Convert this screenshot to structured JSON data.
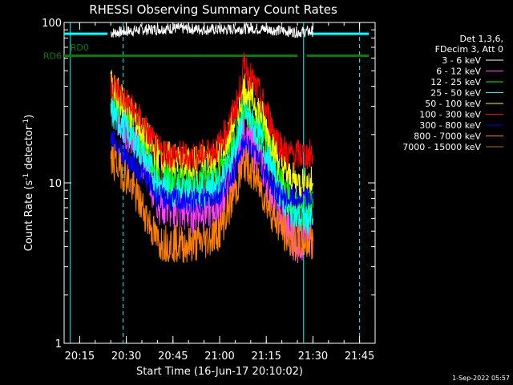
{
  "chart_data": {
    "type": "line",
    "title": "RHESSI Observing Summary Count Rates",
    "xlabel": "Start Time (16-Jun-17 20:10:02)",
    "ylabel_main": "Count Rate (s",
    "ylabel_sup": "-1",
    "ylabel_tail": " detector",
    "ylabel_close": ")",
    "xlim": [
      "20:10",
      "21:50"
    ],
    "ylim": [
      1,
      100
    ],
    "y_scale": "log",
    "x_ticks": [
      {
        "t": "20:15",
        "label": "20:15"
      },
      {
        "t": "20:30",
        "label": "20:30"
      },
      {
        "t": "20:45",
        "label": "20:45"
      },
      {
        "t": "21:00",
        "label": "21:00"
      },
      {
        "t": "21:15",
        "label": "21:15"
      },
      {
        "t": "21:30",
        "label": "21:30"
      },
      {
        "t": "21:45",
        "label": "21:45"
      }
    ],
    "y_ticks": [
      {
        "v": 1,
        "label": "1"
      },
      {
        "v": 10,
        "label": "10"
      },
      {
        "v": 100,
        "label": "100"
      }
    ],
    "legend_header": [
      "Det 1,3,6,",
      "FDecim 3, Att 0"
    ],
    "series": [
      {
        "name": "3 - 6 keV",
        "color": "#ffffff",
        "points": [
          [
            "20:25",
            86
          ],
          [
            "20:30",
            88
          ],
          [
            "20:35",
            90
          ],
          [
            "20:45",
            92
          ],
          [
            "21:00",
            90
          ],
          [
            "21:05",
            91
          ],
          [
            "21:10",
            92
          ],
          [
            "21:20",
            89
          ],
          [
            "21:25",
            87
          ],
          [
            "21:30",
            88
          ]
        ]
      },
      {
        "name": "6 - 12 keV",
        "color": "#ff40ff",
        "points": [
          [
            "20:25",
            30
          ],
          [
            "20:27",
            28
          ],
          [
            "20:30",
            22
          ],
          [
            "20:33",
            18
          ],
          [
            "20:36",
            14
          ],
          [
            "20:40",
            8
          ],
          [
            "20:45",
            7
          ],
          [
            "20:50",
            6.8
          ],
          [
            "20:55",
            7
          ],
          [
            "21:00",
            7.5
          ],
          [
            "21:03",
            10
          ],
          [
            "21:06",
            14
          ],
          [
            "21:08",
            20
          ],
          [
            "21:10",
            18
          ],
          [
            "21:13",
            14
          ],
          [
            "21:16",
            10
          ],
          [
            "21:19",
            7
          ],
          [
            "21:22",
            5
          ],
          [
            "21:25",
            4.5
          ],
          [
            "21:30",
            4.6
          ]
        ]
      },
      {
        "name": "12 - 25 keV",
        "color": "#00ff00",
        "points": [
          [
            "20:25",
            35
          ],
          [
            "20:27",
            32
          ],
          [
            "20:30",
            27
          ],
          [
            "20:33",
            22
          ],
          [
            "20:36",
            18
          ],
          [
            "20:40",
            12
          ],
          [
            "20:45",
            11
          ],
          [
            "20:50",
            10.5
          ],
          [
            "20:55",
            11
          ],
          [
            "21:00",
            12
          ],
          [
            "21:03",
            16
          ],
          [
            "21:06",
            22
          ],
          [
            "21:08",
            32
          ],
          [
            "21:10",
            28
          ],
          [
            "21:13",
            22
          ],
          [
            "21:16",
            16
          ],
          [
            "21:19",
            11
          ],
          [
            "21:22",
            8
          ],
          [
            "21:25",
            7
          ],
          [
            "21:30",
            7
          ]
        ]
      },
      {
        "name": "25 - 50 keV",
        "color": "#00ffff",
        "points": [
          [
            "20:25",
            28
          ],
          [
            "20:27",
            25
          ],
          [
            "20:30",
            22
          ],
          [
            "20:33",
            18
          ],
          [
            "20:36",
            14
          ],
          [
            "20:40",
            10
          ],
          [
            "20:45",
            9
          ],
          [
            "20:50",
            9
          ],
          [
            "20:55",
            9
          ],
          [
            "21:00",
            10
          ],
          [
            "21:03",
            13
          ],
          [
            "21:06",
            19
          ],
          [
            "21:08",
            28
          ],
          [
            "21:10",
            24
          ],
          [
            "21:13",
            19
          ],
          [
            "21:16",
            14
          ],
          [
            "21:19",
            9
          ],
          [
            "21:22",
            7
          ],
          [
            "21:25",
            6
          ],
          [
            "21:30",
            6
          ]
        ]
      },
      {
        "name": "50 - 100 keV",
        "color": "#ffff00",
        "points": [
          [
            "20:25",
            40
          ],
          [
            "20:27",
            36
          ],
          [
            "20:30",
            30
          ],
          [
            "20:33",
            25
          ],
          [
            "20:36",
            20
          ],
          [
            "20:40",
            15
          ],
          [
            "20:45",
            14
          ],
          [
            "20:50",
            13
          ],
          [
            "20:55",
            14
          ],
          [
            "21:00",
            15
          ],
          [
            "21:03",
            20
          ],
          [
            "21:06",
            28
          ],
          [
            "21:08",
            40
          ],
          [
            "21:10",
            35
          ],
          [
            "21:13",
            28
          ],
          [
            "21:16",
            20
          ],
          [
            "21:19",
            14
          ],
          [
            "21:22",
            11
          ],
          [
            "21:25",
            10
          ],
          [
            "21:30",
            10
          ]
        ]
      },
      {
        "name": "100 - 300 keV",
        "color": "#ff0000",
        "points": [
          [
            "20:25",
            42
          ],
          [
            "20:27",
            38
          ],
          [
            "20:30",
            32
          ],
          [
            "20:33",
            27
          ],
          [
            "20:36",
            22
          ],
          [
            "20:40",
            16
          ],
          [
            "20:45",
            15
          ],
          [
            "20:50",
            14.5
          ],
          [
            "20:55",
            15
          ],
          [
            "21:00",
            17
          ],
          [
            "21:03",
            23
          ],
          [
            "21:06",
            33
          ],
          [
            "21:08",
            55
          ],
          [
            "21:10",
            45
          ],
          [
            "21:13",
            35
          ],
          [
            "21:16",
            25
          ],
          [
            "21:19",
            18
          ],
          [
            "21:22",
            15
          ],
          [
            "21:25",
            15
          ],
          [
            "21:30",
            15
          ]
        ]
      },
      {
        "name": "300 - 800 keV",
        "color": "#0000ff",
        "points": [
          [
            "20:25",
            19
          ],
          [
            "20:27",
            17
          ],
          [
            "20:30",
            14.5
          ],
          [
            "20:33",
            12.5
          ],
          [
            "20:36",
            11
          ],
          [
            "20:40",
            8.2
          ],
          [
            "20:45",
            7.8
          ],
          [
            "20:50",
            7.6
          ],
          [
            "20:55",
            7.9
          ],
          [
            "21:00",
            8.5
          ],
          [
            "21:03",
            10.5
          ],
          [
            "21:06",
            13.5
          ],
          [
            "21:08",
            18
          ],
          [
            "21:10",
            16
          ],
          [
            "21:13",
            13
          ],
          [
            "21:16",
            10.5
          ],
          [
            "21:19",
            8.5
          ],
          [
            "21:22",
            8
          ],
          [
            "21:25",
            8
          ],
          [
            "21:30",
            8
          ]
        ]
      },
      {
        "name": "800 - 7000 keV",
        "color": "#ff8000",
        "points": [
          [
            "20:25",
            14
          ],
          [
            "20:27",
            13
          ],
          [
            "20:30",
            11
          ],
          [
            "20:33",
            8.5
          ],
          [
            "20:36",
            6.5
          ],
          [
            "20:40",
            4.3
          ],
          [
            "20:45",
            4.2
          ],
          [
            "20:50",
            4.1
          ],
          [
            "20:55",
            4.3
          ],
          [
            "21:00",
            5
          ],
          [
            "21:03",
            7
          ],
          [
            "21:06",
            10
          ],
          [
            "21:08",
            13.5
          ],
          [
            "21:10",
            12
          ],
          [
            "21:13",
            9.5
          ],
          [
            "21:16",
            7
          ],
          [
            "21:19",
            5.5
          ],
          [
            "21:22",
            4.5
          ],
          [
            "21:25",
            4.2
          ],
          [
            "21:30",
            4.3
          ]
        ]
      },
      {
        "name": "7000 - 15000 keV",
        "color": "#a07800",
        "points": []
      }
    ],
    "vlines": [
      {
        "t": "20:12",
        "color": "#00ffff",
        "style": "solid"
      },
      {
        "t": "20:29",
        "color": "#00ffff",
        "style": "dashed"
      },
      {
        "t": "21:27",
        "color": "#00ffff",
        "style": "solid"
      },
      {
        "t": "21:45",
        "color": "#00ffff",
        "style": "dashed"
      }
    ],
    "attenuator_bars": [
      {
        "t0": "20:10",
        "t1": "20:24",
        "v": 85,
        "color": "#00ffff"
      },
      {
        "t0": "21:29",
        "t1": "21:48",
        "v": 85,
        "color": "#00ffff"
      }
    ],
    "flag_rows": [
      {
        "label": "RD0",
        "label_t": "20:12",
        "v": 70,
        "color": "#008000",
        "segments": []
      },
      {
        "label": "RD6",
        "label_t": "20:10",
        "v": 62,
        "color": "#008000",
        "segments": [
          [
            "20:10",
            "20:35"
          ],
          [
            "20:35",
            "20:55"
          ],
          [
            "20:55",
            "21:25"
          ],
          [
            "21:28",
            "21:48"
          ]
        ]
      }
    ]
  },
  "legend": {
    "position": "top-right"
  },
  "footer": {
    "timestamp": "1-Sep-2022 05:57"
  }
}
